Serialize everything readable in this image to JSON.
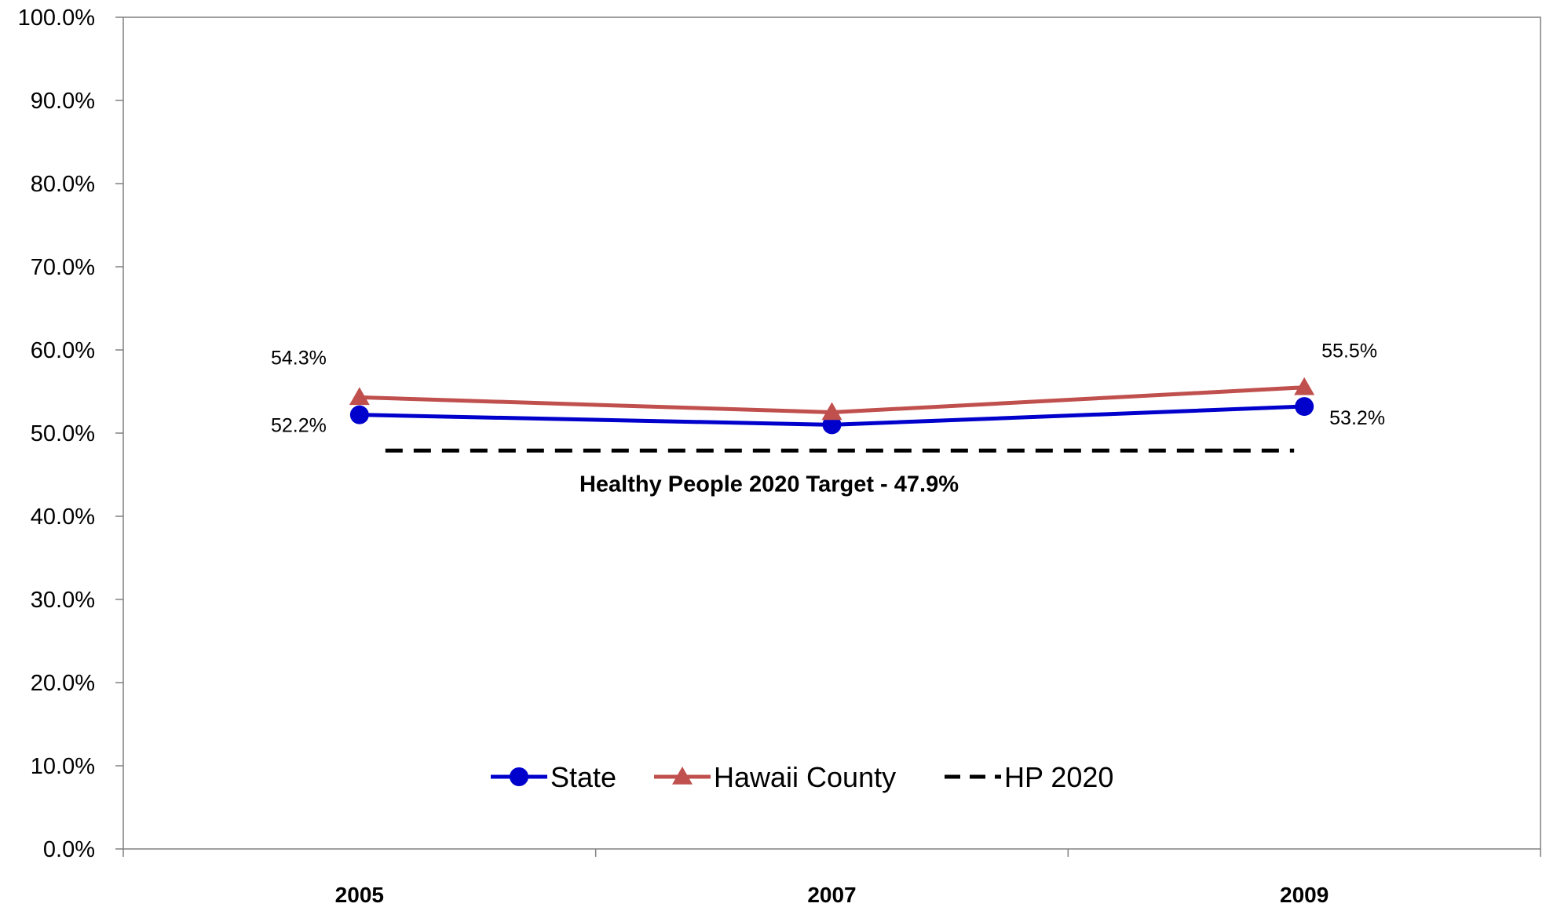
{
  "chart_data": {
    "type": "line",
    "categories": [
      "2005",
      "2007",
      "2009"
    ],
    "ylim": [
      0,
      100
    ],
    "ytick_step": 10,
    "ytick_labels": [
      "0.0%",
      "10.0%",
      "20.0%",
      "30.0%",
      "40.0%",
      "50.0%",
      "60.0%",
      "70.0%",
      "80.0%",
      "90.0%",
      "100.0%"
    ],
    "grid": false,
    "legend_position": "bottom-center",
    "series": [
      {
        "name": "State",
        "values": [
          52.2,
          51.0,
          53.2
        ],
        "color": "#0000cc",
        "marker": "circle",
        "data_labels": [
          "52.2%",
          "",
          "53.2%"
        ]
      },
      {
        "name": "Hawaii County",
        "values": [
          54.3,
          52.5,
          55.5
        ],
        "color": "#c0504d",
        "marker": "triangle",
        "data_labels": [
          "54.3%",
          "",
          "55.5%"
        ]
      },
      {
        "name": "HP 2020",
        "values": [
          47.9,
          47.9,
          47.9
        ],
        "color": "#000000",
        "marker": "none",
        "line_style": "dashed",
        "data_labels": [
          "",
          "",
          ""
        ]
      }
    ],
    "annotations": [
      {
        "text": "Healthy People 2020 Target - 47.9%",
        "x": "2007",
        "y": 47.9
      }
    ]
  }
}
